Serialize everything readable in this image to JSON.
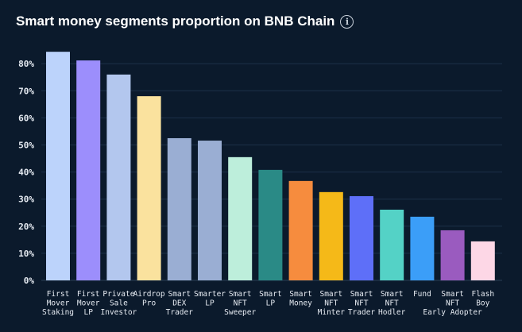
{
  "title": "Smart money segments proportion on BNB Chain",
  "info_icon": "info-circle-icon",
  "chart_data": {
    "type": "bar",
    "title": "Smart money segments proportion on BNB Chain",
    "xlabel": "",
    "ylabel": "",
    "ylim": [
      0,
      85
    ],
    "yticks": [
      "0%",
      "10%",
      "20%",
      "30%",
      "40%",
      "50%",
      "60%",
      "70%",
      "80%"
    ],
    "grid": true,
    "categories": [
      "First Mover Staking",
      "First Mover LP",
      "Private Sale Investor",
      "Airdrop Pro",
      "Smart DEX Trader",
      "Smarter LP",
      "Smart NFT Sweeper",
      "Smart LP",
      "Smart Money",
      "Smart NFT Minter",
      "Smart NFT Trader",
      "Smart NFT Hodler",
      "Fund",
      "Smart NFT Early Adopter",
      "Flash Boy"
    ],
    "values": [
      84.4,
      81.2,
      76.0,
      68.0,
      52.5,
      51.6,
      45.5,
      40.8,
      36.7,
      32.6,
      31.1,
      26.1,
      23.5,
      18.5,
      14.4
    ],
    "colors": [
      "#bcd3fb",
      "#9c8efc",
      "#b3c7ee",
      "#fae29e",
      "#9aaed3",
      "#9aaed3",
      "#bdeedb",
      "#2a8a86",
      "#f68c3e",
      "#f5b918",
      "#5e6ff8",
      "#54d2c6",
      "#3b9ef8",
      "#9a5bbf",
      "#fdd7e6"
    ]
  }
}
